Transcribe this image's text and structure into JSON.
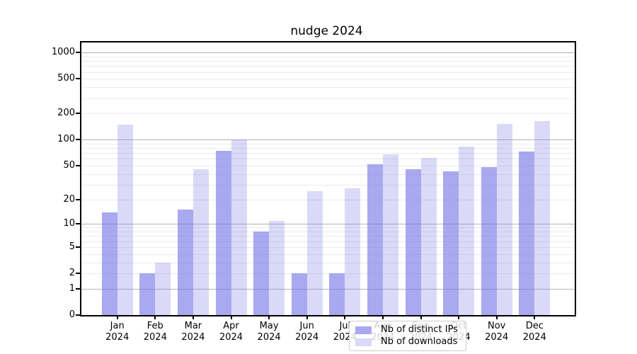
{
  "chart_data": {
    "type": "bar",
    "title": "nudge 2024",
    "x_categories": [
      "Jan 2024",
      "Feb 2024",
      "Mar 2024",
      "Apr 2024",
      "May 2024",
      "Jun 2024",
      "Jul 2024",
      "Aug 2024",
      "Sep 2024",
      "Oct 2024",
      "Nov 2024",
      "Dec 2024"
    ],
    "x_tick_lines": [
      [
        "Jan",
        "2024"
      ],
      [
        "Feb",
        "2024"
      ],
      [
        "Mar",
        "2024"
      ],
      [
        "Apr",
        "2024"
      ],
      [
        "May",
        "2024"
      ],
      [
        "Jun",
        "2024"
      ],
      [
        "Jul",
        "2024"
      ],
      [
        "Aug",
        "2024"
      ],
      [
        "Sep",
        "2024"
      ],
      [
        "Oct",
        "2024"
      ],
      [
        "Nov",
        "2024"
      ],
      [
        "Dec",
        "2024"
      ]
    ],
    "series": [
      {
        "name": "Nb of distinct IPs",
        "color": "rgba(123,123,230,0.65)",
        "values": [
          14,
          2,
          15,
          75,
          8,
          2,
          2,
          52,
          45,
          43,
          48,
          73
        ]
      },
      {
        "name": "Nb of downloads",
        "color": "rgba(123,123,230,0.28)",
        "values": [
          150,
          3,
          45,
          100,
          11,
          25,
          27,
          68,
          62,
          84,
          153,
          164
        ]
      }
    ],
    "y_axis": {
      "scale": "log1p",
      "ticks": [
        0,
        1,
        2,
        5,
        10,
        20,
        50,
        100,
        200,
        500,
        1000
      ],
      "range": [
        0,
        1300
      ],
      "major_gridlines": [
        1,
        10,
        100,
        1000
      ],
      "minor_gridlines": [
        2,
        3,
        4,
        5,
        6,
        7,
        8,
        9,
        20,
        30,
        40,
        50,
        60,
        70,
        80,
        90,
        200,
        300,
        400,
        500,
        600,
        700,
        800,
        900
      ]
    },
    "legend": {
      "position": "lower center"
    },
    "colors": {
      "spine": "#000000",
      "major_grid": "#b3b3b3",
      "minor_grid": "#ebebeb"
    }
  }
}
